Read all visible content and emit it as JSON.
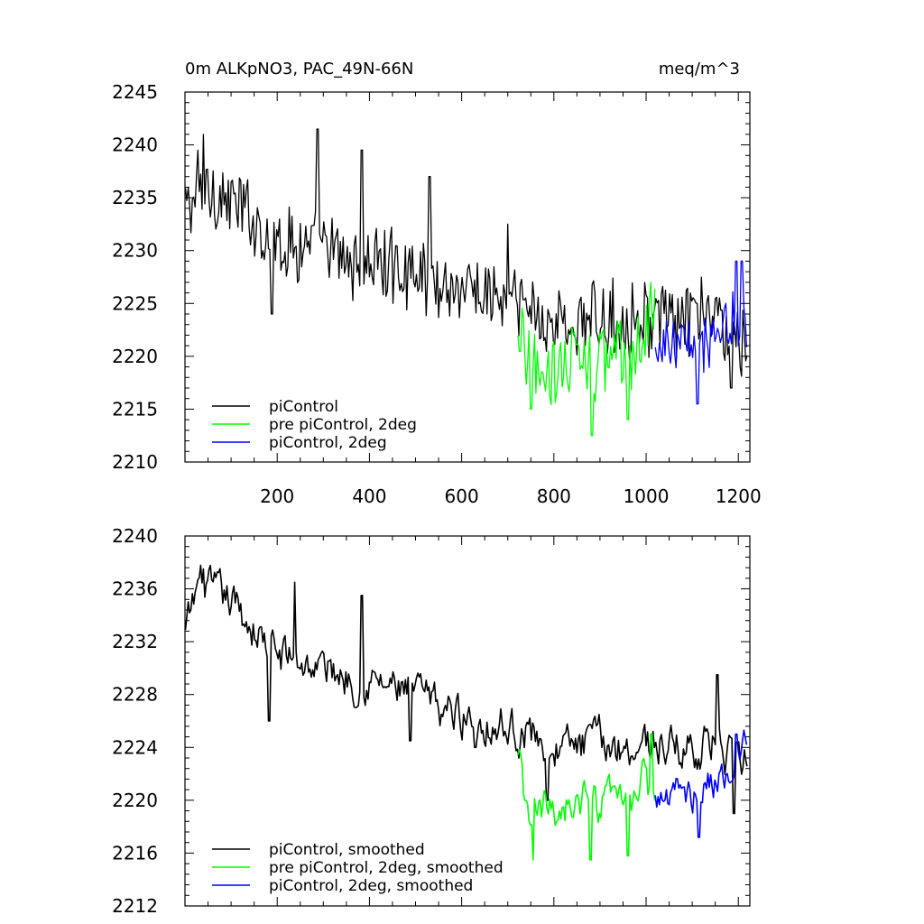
{
  "chart_data": [
    {
      "type": "line",
      "title": "0m ALKpNO3, PAC_49N-66N",
      "units": "meq/m^3",
      "xlabel": "",
      "ylabel": "",
      "xlim": [
        0,
        1225
      ],
      "ylim": [
        2210,
        2245
      ],
      "xticks": [
        200,
        400,
        600,
        800,
        1000,
        1200
      ],
      "yticks": [
        2210,
        2215,
        2220,
        2225,
        2230,
        2235,
        2240,
        2245
      ],
      "grid": false,
      "legend_position": "bottom-left",
      "series": [
        {
          "name": "piControl",
          "color": "#000000",
          "x_start": 1,
          "x_end": 1220,
          "trend": [
            [
              1,
              2234
            ],
            [
              50,
              2236
            ],
            [
              100,
              2234.5
            ],
            [
              150,
              2233
            ],
            [
              200,
              2231
            ],
            [
              250,
              2230.5
            ],
            [
              300,
              2230
            ],
            [
              350,
              2229
            ],
            [
              400,
              2229
            ],
            [
              450,
              2228.5
            ],
            [
              500,
              2228
            ],
            [
              550,
              2227
            ],
            [
              600,
              2226.5
            ],
            [
              650,
              2226
            ],
            [
              700,
              2225
            ],
            [
              750,
              2224.5
            ],
            [
              800,
              2223
            ],
            [
              850,
              2223
            ],
            [
              900,
              2223.5
            ],
            [
              950,
              2223.5
            ],
            [
              1000,
              2224
            ],
            [
              1050,
              2223
            ],
            [
              1100,
              2223.5
            ],
            [
              1150,
              2224
            ],
            [
              1200,
              2221
            ],
            [
              1220,
              2222
            ]
          ],
          "noise_amplitude": 3.0,
          "peaks": [
            [
              28,
              2239.5
            ],
            [
              40,
              2241
            ],
            [
              188,
              2224
            ],
            [
              288,
              2241.5
            ],
            [
              383,
              2239.5
            ],
            [
              530,
              2237
            ],
            [
              700,
              2232.5
            ],
            [
              1185,
              2217
            ]
          ]
        },
        {
          "name": "pre piControl, 2deg",
          "color": "#00ff00",
          "x_start": 722,
          "x_end": 1020,
          "trend": [
            [
              722,
              2222
            ],
            [
              760,
              2218.5
            ],
            [
              800,
              2219
            ],
            [
              850,
              2220
            ],
            [
              880,
              2219
            ],
            [
              920,
              2220
            ],
            [
              960,
              2220
            ],
            [
              1000,
              2221.5
            ],
            [
              1020,
              2223
            ]
          ],
          "noise_amplitude": 3.0,
          "peaks": [
            [
              750,
              2215
            ],
            [
              882,
              2212.5
            ],
            [
              960,
              2214
            ],
            [
              1010,
              2227
            ]
          ]
        },
        {
          "name": "piControl, 2deg",
          "color": "#0000ff",
          "x_start": 1020,
          "x_end": 1220,
          "trend": [
            [
              1020,
              2220.5
            ],
            [
              1060,
              2221
            ],
            [
              1100,
              2220.5
            ],
            [
              1140,
              2221.5
            ],
            [
              1180,
              2223
            ],
            [
              1220,
              2223.5
            ]
          ],
          "noise_amplitude": 2.5,
          "peaks": [
            [
              1112,
              2215.5
            ],
            [
              1195,
              2229
            ],
            [
              1207,
              2229
            ]
          ]
        }
      ]
    },
    {
      "type": "line",
      "title": "",
      "xlabel": "",
      "ylabel": "",
      "xlim": [
        0,
        1225
      ],
      "ylim": [
        2212,
        2240
      ],
      "xticks": [
        200,
        400,
        600,
        800,
        1000,
        1200
      ],
      "yticks": [
        2212,
        2216,
        2220,
        2224,
        2228,
        2232,
        2236,
        2240
      ],
      "grid": false,
      "legend_position": "bottom-left",
      "series": [
        {
          "name": "piControl, smoothed",
          "color": "#000000",
          "x_start": 1,
          "x_end": 1220,
          "trend": [
            [
              1,
              2232.5
            ],
            [
              30,
              2236.5
            ],
            [
              60,
              2235.5
            ],
            [
              100,
              2235
            ],
            [
              150,
              2233
            ],
            [
              200,
              2231
            ],
            [
              250,
              2230.5
            ],
            [
              300,
              2230
            ],
            [
              350,
              2229.5
            ],
            [
              400,
              2229
            ],
            [
              450,
              2228.5
            ],
            [
              500,
              2228
            ],
            [
              550,
              2227
            ],
            [
              600,
              2226.5
            ],
            [
              650,
              2226
            ],
            [
              700,
              2225.5
            ],
            [
              750,
              2225
            ],
            [
              800,
              2224
            ],
            [
              850,
              2224
            ],
            [
              900,
              2224.5
            ],
            [
              950,
              2224
            ],
            [
              1000,
              2224.5
            ],
            [
              1050,
              2224
            ],
            [
              1100,
              2224
            ],
            [
              1150,
              2224.5
            ],
            [
              1200,
              2222
            ],
            [
              1220,
              2223.5
            ]
          ],
          "noise_amplitude": 1.4,
          "peaks": [
            [
              40,
              2237.5
            ],
            [
              183,
              2226
            ],
            [
              238,
              2236.5
            ],
            [
              383,
              2235.5
            ],
            [
              488,
              2224.5
            ],
            [
              630,
              2224
            ],
            [
              785,
              2220
            ],
            [
              1155,
              2229.5
            ],
            [
              1190,
              2219
            ]
          ]
        },
        {
          "name": "pre piControl, 2deg, smoothed",
          "color": "#00ff00",
          "x_start": 722,
          "x_end": 1020,
          "trend": [
            [
              722,
              2223
            ],
            [
              740,
              2219
            ],
            [
              760,
              2218.5
            ],
            [
              800,
              2219.5
            ],
            [
              850,
              2220
            ],
            [
              880,
              2219
            ],
            [
              920,
              2219.5
            ],
            [
              960,
              2220
            ],
            [
              1000,
              2221.5
            ],
            [
              1020,
              2220
            ]
          ],
          "noise_amplitude": 1.5,
          "peaks": [
            [
              755,
              2215.5
            ],
            [
              880,
              2215.5
            ],
            [
              960,
              2215.8
            ],
            [
              1012,
              2225
            ]
          ]
        },
        {
          "name": "piControl, 2deg, smoothed",
          "color": "#0000ff",
          "x_start": 1020,
          "x_end": 1220,
          "trend": [
            [
              1020,
              2220
            ],
            [
              1060,
              2220.5
            ],
            [
              1100,
              2220.5
            ],
            [
              1140,
              2221.5
            ],
            [
              1180,
              2222
            ],
            [
              1220,
              2224
            ]
          ],
          "noise_amplitude": 1.2,
          "peaks": [
            [
              1115,
              2217.2
            ],
            [
              1195,
              2225
            ]
          ]
        }
      ]
    }
  ]
}
